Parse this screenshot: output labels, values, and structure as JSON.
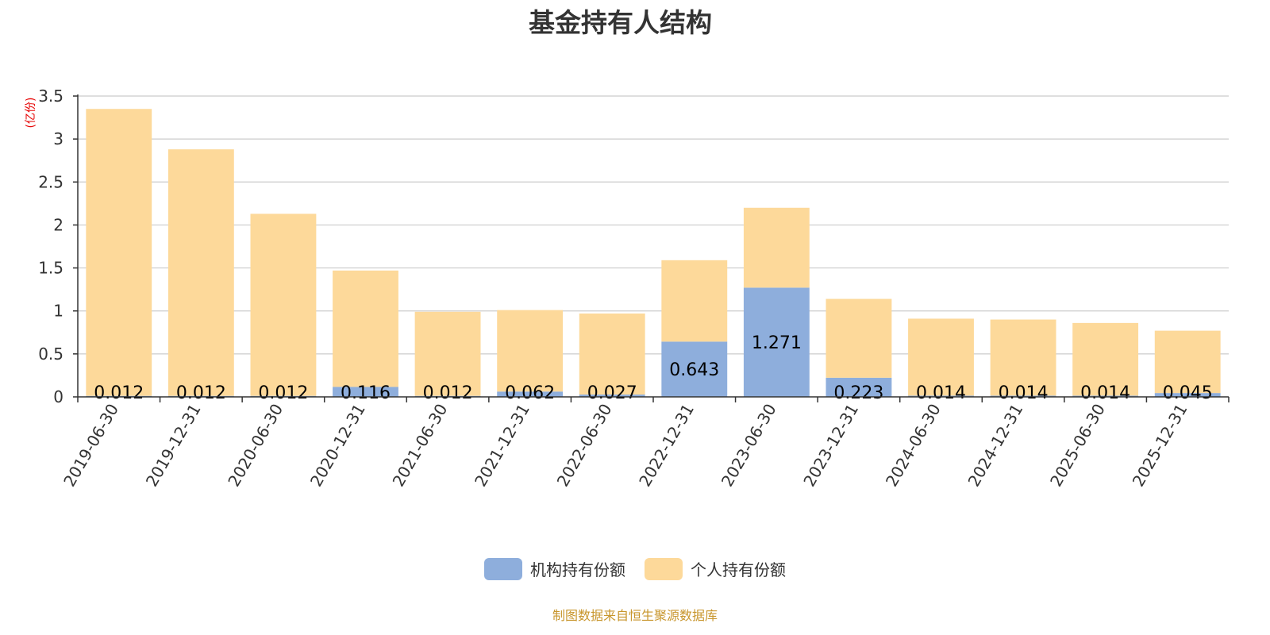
{
  "title": "基金持有人结构",
  "y_unit": "(亿份)",
  "source": "制图数据来自恒生聚源数据库",
  "colors": {
    "institutional": "#8eaedc",
    "individual": "#fdd99a",
    "grid": "#cccccc",
    "axis": "#333333"
  },
  "chart_data": {
    "type": "bar",
    "stacked": true,
    "categories": [
      "2019-06-30",
      "2019-12-31",
      "2020-06-30",
      "2020-12-31",
      "2021-06-30",
      "2021-12-31",
      "2022-06-30",
      "2022-12-31",
      "2023-06-30",
      "2023-12-31",
      "2024-06-30",
      "2024-12-31",
      "2025-06-30",
      "2025-12-31"
    ],
    "series": [
      {
        "name": "机构持有份额",
        "color": "#8eaedc",
        "values": [
          0.012,
          0.012,
          0.012,
          0.116,
          0.012,
          0.062,
          0.027,
          0.643,
          1.271,
          0.223,
          0.014,
          0.014,
          0.014,
          0.045
        ],
        "labels": [
          "0.012",
          "0.012",
          "0.012",
          "0.116",
          "0.012",
          "0.062",
          "0.027",
          "0.643",
          "1.271",
          "0.223",
          "0.014",
          "0.014",
          "0.014",
          "0.045"
        ]
      },
      {
        "name": "个人持有份额",
        "color": "#fdd99a",
        "values": [
          3.338,
          2.868,
          2.118,
          1.354,
          0.978,
          0.948,
          0.943,
          0.947,
          0.929,
          0.917,
          0.896,
          0.886,
          0.846,
          0.725
        ]
      }
    ],
    "ylim": [
      0,
      3.5
    ],
    "yticks": [
      0,
      0.5,
      1,
      1.5,
      2,
      2.5,
      3,
      3.5
    ],
    "ytick_labels": [
      "0",
      "0.5",
      "1",
      "1.5",
      "2",
      "2.5",
      "3",
      "3.5"
    ],
    "grid": true,
    "legend_position": "bottom-center"
  }
}
